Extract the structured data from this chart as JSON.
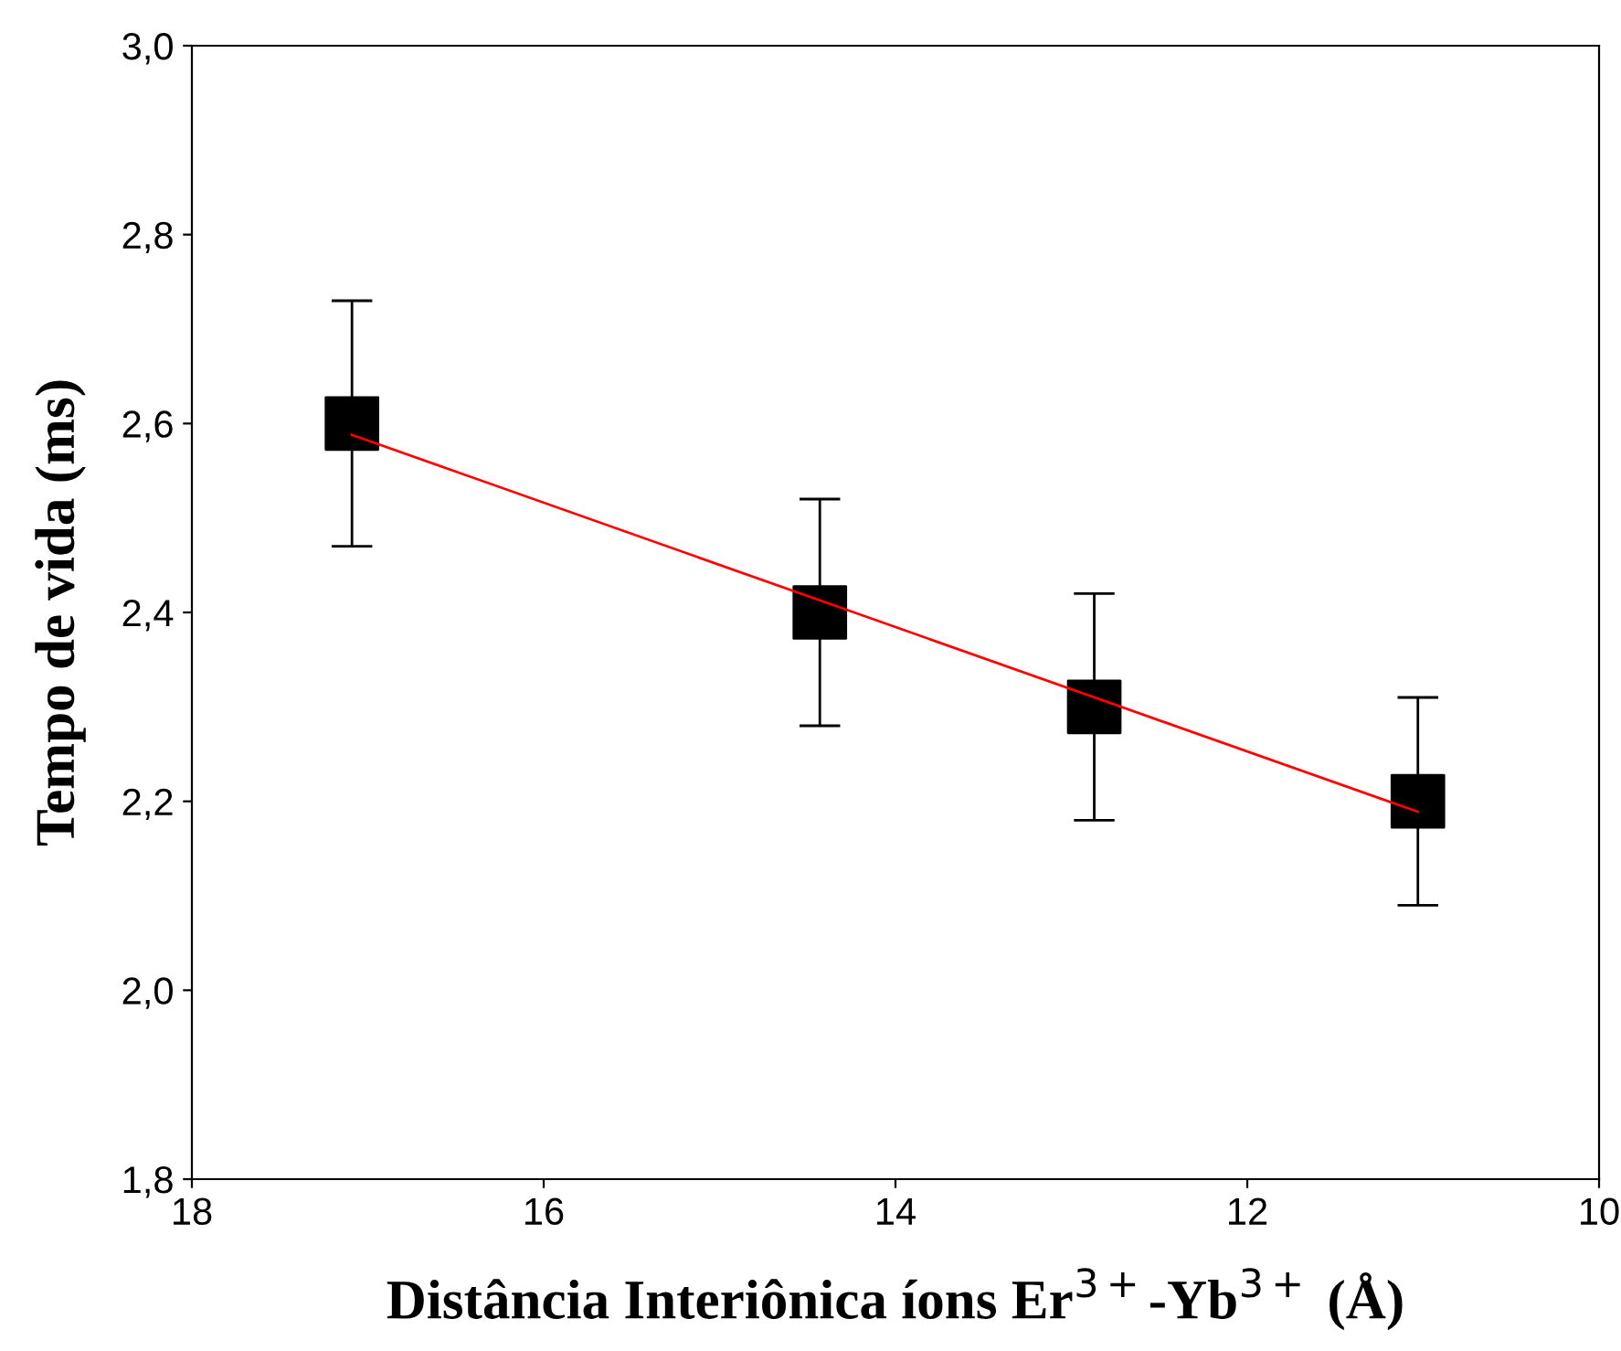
{
  "chart_data": {
    "type": "scatter",
    "xlabel": "Distância Interiônica íons Er$^{3+}$-Yb$^{3+}$ (Å)",
    "ylabel": "Tempo de vida (ms)",
    "xlim": [
      18,
      10
    ],
    "xticks": [
      18,
      16,
      14,
      12,
      10
    ],
    "ylim": [
      1.8,
      3.0
    ],
    "yticks": [
      {
        "value": 1.8,
        "label": "1,8"
      },
      {
        "value": 2.0,
        "label": "2,0"
      },
      {
        "value": 2.2,
        "label": "2,2"
      },
      {
        "value": 2.4,
        "label": "2,4"
      },
      {
        "value": 2.6,
        "label": "2,6"
      },
      {
        "value": 2.8,
        "label": "2,8"
      },
      {
        "value": 3.0,
        "label": "3,0"
      }
    ],
    "grid": false,
    "legend": false,
    "series": [
      {
        "color": "#000000",
        "marker": "square",
        "x": [
          17.09,
          14.43,
          12.87,
          11.03
        ],
        "values": [
          2.6,
          2.4,
          2.3,
          2.2
        ],
        "errors": [
          0.13,
          0.12,
          0.12,
          0.11
        ]
      },
      {
        "type": "line",
        "color": "#ff0000",
        "marker": "none",
        "line_style": "solid",
        "x": [
          17.09,
          11.03
        ],
        "values": [
          2.588,
          2.189
        ]
      }
    ]
  }
}
